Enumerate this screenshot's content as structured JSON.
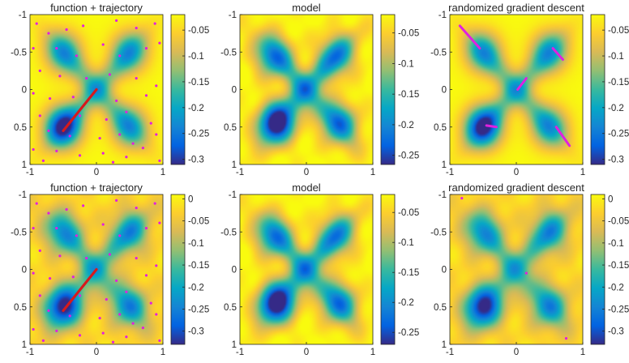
{
  "palette": {
    "parula": [
      "#352a87",
      "#0363e1",
      "#1485d4",
      "#06a7c6",
      "#38b99e",
      "#92bf73",
      "#d9ba56",
      "#fcce2e",
      "#f9fb0e"
    ],
    "trajectory_color": "#d7191c",
    "sample_color": "#e020e0",
    "descent_color": "#e020e0"
  },
  "chart_data": [
    {
      "type": "heatmap",
      "panel": "function-trajectory-top",
      "title": "function + trajectory",
      "xlim": [
        -1,
        1
      ],
      "ylim": [
        -1,
        1
      ],
      "y_reversed": true,
      "xticks": [
        "-1",
        "0",
        "1"
      ],
      "yticks": [
        "-1",
        "-0.5",
        "0",
        "0.5",
        "1"
      ],
      "clim": [
        -0.31,
        -0.02
      ],
      "colorbar_ticks": [
        {
          "value": -0.05,
          "label": "-0.05"
        },
        {
          "value": -0.1,
          "label": "-0.1"
        },
        {
          "value": -0.15,
          "label": "-0.15"
        },
        {
          "value": -0.2,
          "label": "-0.2"
        },
        {
          "value": -0.25,
          "label": "-0.25"
        },
        {
          "value": -0.3,
          "label": "-0.3"
        }
      ],
      "basins": [
        [
          -0.5,
          0.5,
          0.27
        ],
        [
          -0.5,
          -0.5,
          0.16
        ],
        [
          0.5,
          -0.5,
          0.16
        ],
        [
          0.5,
          0.5,
          0.16
        ]
      ],
      "bridge": 0.11,
      "noise": 0,
      "trajectory": [
        [
          0,
          0
        ],
        [
          -0.5,
          0.55
        ]
      ],
      "samples": [
        [
          -0.9,
          -0.88
        ],
        [
          -0.72,
          -0.75
        ],
        [
          -0.45,
          -0.8
        ],
        [
          -0.2,
          -0.85
        ],
        [
          0.3,
          -0.92
        ],
        [
          0.6,
          -0.82
        ],
        [
          0.88,
          -0.88
        ],
        [
          -0.95,
          -0.55
        ],
        [
          -0.6,
          -0.55
        ],
        [
          -0.3,
          -0.45
        ],
        [
          0.1,
          -0.6
        ],
        [
          0.35,
          -0.45
        ],
        [
          0.75,
          -0.55
        ],
        [
          0.95,
          -0.62
        ],
        [
          -0.85,
          -0.25
        ],
        [
          -0.55,
          -0.18
        ],
        [
          -0.15,
          -0.15
        ],
        [
          0.2,
          -0.2
        ],
        [
          0.6,
          -0.15
        ],
        [
          0.9,
          -0.05
        ],
        [
          -0.95,
          0.05
        ],
        [
          -0.7,
          0.12
        ],
        [
          -0.35,
          0.1
        ],
        [
          0.3,
          0.15
        ],
        [
          0.75,
          0.08
        ],
        [
          -0.85,
          0.35
        ],
        [
          -0.25,
          0.35
        ],
        [
          0.15,
          0.4
        ],
        [
          0.45,
          0.3
        ],
        [
          0.82,
          0.45
        ],
        [
          -0.72,
          0.55
        ],
        [
          -0.4,
          0.62
        ],
        [
          0.05,
          0.65
        ],
        [
          0.35,
          0.6
        ],
        [
          0.9,
          0.6
        ],
        [
          -0.95,
          0.8
        ],
        [
          -0.6,
          0.82
        ],
        [
          -0.25,
          0.88
        ],
        [
          0.1,
          0.85
        ],
        [
          0.45,
          0.9
        ],
        [
          0.7,
          0.78
        ],
        [
          0.95,
          0.95
        ],
        [
          -0.8,
          0.95
        ],
        [
          0.25,
          0.97
        ],
        [
          0.55,
          0.72
        ]
      ],
      "segments": []
    },
    {
      "type": "heatmap",
      "panel": "model-top",
      "title": "model",
      "xlim": [
        -1,
        1
      ],
      "ylim": [
        -1,
        1
      ],
      "y_reversed": true,
      "xticks": [
        "-1",
        "0",
        "1"
      ],
      "yticks": [
        "-1",
        "-0.5",
        "0",
        "0.5",
        "1"
      ],
      "clim": [
        -0.265,
        -0.02
      ],
      "colorbar_ticks": [
        {
          "value": -0.05,
          "label": "-0.05"
        },
        {
          "value": -0.1,
          "label": "-0.1"
        },
        {
          "value": -0.15,
          "label": "-0.15"
        },
        {
          "value": -0.2,
          "label": "-0.2"
        },
        {
          "value": -0.25,
          "label": "-0.25"
        }
      ],
      "basins": [
        [
          -0.45,
          0.45,
          0.235
        ],
        [
          -0.5,
          -0.45,
          0.15
        ],
        [
          0.45,
          -0.45,
          0.14
        ],
        [
          0.5,
          0.45,
          0.15
        ]
      ],
      "bridge": 0.11,
      "noise": 0.015,
      "trajectory": [],
      "samples": [],
      "segments": []
    },
    {
      "type": "heatmap",
      "panel": "random-descent-top",
      "title": "randomized gradient descent",
      "xlim": [
        -1,
        1
      ],
      "ylim": [
        -1,
        1
      ],
      "y_reversed": true,
      "xticks": [
        "-1",
        "0",
        "1"
      ],
      "yticks": [
        "-1",
        "-0.5",
        "0",
        "0.5",
        "1"
      ],
      "clim": [
        -0.31,
        -0.02
      ],
      "colorbar_ticks": [
        {
          "value": -0.05,
          "label": "-0.05"
        },
        {
          "value": -0.1,
          "label": "-0.1"
        },
        {
          "value": -0.15,
          "label": "-0.15"
        },
        {
          "value": -0.2,
          "label": "-0.2"
        },
        {
          "value": -0.25,
          "label": "-0.25"
        },
        {
          "value": -0.3,
          "label": "-0.3"
        }
      ],
      "basins": [
        [
          -0.5,
          0.5,
          0.27
        ],
        [
          -0.5,
          -0.5,
          0.16
        ],
        [
          0.5,
          -0.5,
          0.16
        ],
        [
          0.5,
          0.5,
          0.16
        ]
      ],
      "bridge": 0.11,
      "noise": 0,
      "trajectory": [],
      "samples": [],
      "segments": [
        [
          [
            -0.85,
            -0.85
          ],
          [
            -0.55,
            -0.55
          ]
        ],
        [
          [
            0.7,
            -0.4
          ],
          [
            0.55,
            -0.55
          ]
        ],
        [
          [
            0.15,
            -0.15
          ],
          [
            0.02,
            0.0
          ]
        ],
        [
          [
            -0.45,
            0.48
          ],
          [
            -0.3,
            0.5
          ]
        ],
        [
          [
            0.6,
            0.5
          ],
          [
            0.8,
            0.75
          ]
        ]
      ]
    },
    {
      "type": "heatmap",
      "panel": "function-trajectory-bottom",
      "title": "function + trajectory",
      "xlim": [
        -1,
        1
      ],
      "ylim": [
        -1,
        1
      ],
      "y_reversed": true,
      "xticks": [
        "-1",
        "0",
        "1"
      ],
      "yticks": [
        "-1",
        "-0.5",
        "0",
        "0.5",
        "1"
      ],
      "clim": [
        -0.33,
        0.01
      ],
      "colorbar_ticks": [
        {
          "value": 0,
          "label": "0"
        },
        {
          "value": -0.05,
          "label": "-0.05"
        },
        {
          "value": -0.1,
          "label": "-0.1"
        },
        {
          "value": -0.15,
          "label": "-0.15"
        },
        {
          "value": -0.2,
          "label": "-0.2"
        },
        {
          "value": -0.25,
          "label": "-0.25"
        },
        {
          "value": -0.3,
          "label": "-0.3"
        }
      ],
      "basins": [
        [
          -0.5,
          0.5,
          0.28
        ],
        [
          -0.5,
          -0.5,
          0.17
        ],
        [
          0.5,
          -0.5,
          0.17
        ],
        [
          0.5,
          0.5,
          0.17
        ]
      ],
      "bridge": 0.11,
      "noise": 0.02,
      "trajectory": [
        [
          0,
          0
        ],
        [
          -0.5,
          0.55
        ]
      ],
      "samples": [
        [
          -0.9,
          -0.88
        ],
        [
          -0.72,
          -0.75
        ],
        [
          -0.45,
          -0.8
        ],
        [
          -0.2,
          -0.85
        ],
        [
          0.3,
          -0.92
        ],
        [
          0.6,
          -0.82
        ],
        [
          0.88,
          -0.88
        ],
        [
          -0.95,
          -0.55
        ],
        [
          -0.6,
          -0.55
        ],
        [
          -0.3,
          -0.45
        ],
        [
          0.1,
          -0.6
        ],
        [
          0.35,
          -0.45
        ],
        [
          0.75,
          -0.55
        ],
        [
          0.95,
          -0.62
        ],
        [
          -0.85,
          -0.25
        ],
        [
          -0.55,
          -0.18
        ],
        [
          -0.15,
          -0.15
        ],
        [
          0.2,
          -0.2
        ],
        [
          0.6,
          -0.15
        ],
        [
          0.9,
          -0.05
        ],
        [
          -0.95,
          0.05
        ],
        [
          -0.7,
          0.12
        ],
        [
          -0.35,
          0.1
        ],
        [
          0.3,
          0.15
        ],
        [
          0.75,
          0.08
        ],
        [
          -0.85,
          0.35
        ],
        [
          -0.25,
          0.35
        ],
        [
          0.15,
          0.4
        ],
        [
          0.45,
          0.3
        ],
        [
          0.82,
          0.45
        ],
        [
          -0.72,
          0.55
        ],
        [
          -0.4,
          0.62
        ],
        [
          0.05,
          0.65
        ],
        [
          0.35,
          0.6
        ],
        [
          0.9,
          0.6
        ],
        [
          -0.95,
          0.8
        ],
        [
          -0.6,
          0.82
        ],
        [
          -0.25,
          0.88
        ],
        [
          0.1,
          0.85
        ],
        [
          0.45,
          0.9
        ],
        [
          0.7,
          0.78
        ],
        [
          0.95,
          0.95
        ],
        [
          -0.8,
          0.95
        ],
        [
          0.25,
          0.97
        ],
        [
          0.55,
          0.72
        ]
      ],
      "segments": []
    },
    {
      "type": "heatmap",
      "panel": "model-bottom",
      "title": "model",
      "xlim": [
        -1,
        1
      ],
      "ylim": [
        -1,
        1
      ],
      "y_reversed": true,
      "xticks": [
        "-1",
        "0",
        "1"
      ],
      "yticks": [
        "-1",
        "-0.5",
        "0",
        "0.5",
        "1"
      ],
      "clim": [
        -0.27,
        -0.02
      ],
      "colorbar_ticks": [
        {
          "value": -0.05,
          "label": "-0.05"
        },
        {
          "value": -0.1,
          "label": "-0.1"
        },
        {
          "value": -0.15,
          "label": "-0.15"
        },
        {
          "value": -0.2,
          "label": "-0.2"
        },
        {
          "value": -0.25,
          "label": "-0.25"
        }
      ],
      "basins": [
        [
          -0.45,
          0.45,
          0.24
        ],
        [
          -0.5,
          -0.45,
          0.15
        ],
        [
          0.45,
          -0.45,
          0.14
        ],
        [
          0.5,
          0.45,
          0.15
        ]
      ],
      "bridge": 0.11,
      "noise": 0.015,
      "trajectory": [],
      "samples": [],
      "segments": []
    },
    {
      "type": "heatmap",
      "panel": "random-descent-bottom",
      "title": "randomized gradient descent",
      "xlim": [
        -1,
        1
      ],
      "ylim": [
        -1,
        1
      ],
      "y_reversed": true,
      "xticks": [
        "-1",
        "0",
        "1"
      ],
      "yticks": [
        "-1",
        "-0.5",
        "0",
        "0.5",
        "1"
      ],
      "clim": [
        -0.33,
        0.01
      ],
      "colorbar_ticks": [
        {
          "value": 0,
          "label": "0"
        },
        {
          "value": -0.05,
          "label": "-0.05"
        },
        {
          "value": -0.1,
          "label": "-0.1"
        },
        {
          "value": -0.15,
          "label": "-0.15"
        },
        {
          "value": -0.2,
          "label": "-0.2"
        },
        {
          "value": -0.25,
          "label": "-0.25"
        },
        {
          "value": -0.3,
          "label": "-0.3"
        }
      ],
      "basins": [
        [
          -0.5,
          0.5,
          0.28
        ],
        [
          -0.5,
          -0.5,
          0.17
        ],
        [
          0.5,
          -0.5,
          0.17
        ],
        [
          0.5,
          0.5,
          0.17
        ]
      ],
      "bridge": 0.11,
      "noise": 0.02,
      "trajectory": [],
      "samples": [
        [
          -0.82,
          -0.95
        ],
        [
          0.75,
          0.92
        ],
        [
          0.15,
          0.05
        ]
      ],
      "segments": []
    }
  ]
}
